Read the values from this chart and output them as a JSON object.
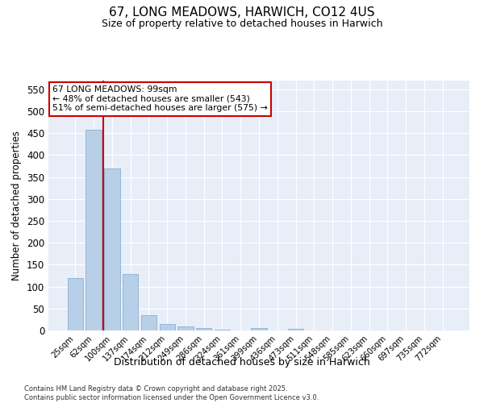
{
  "title1": "67, LONG MEADOWS, HARWICH, CO12 4US",
  "title2": "Size of property relative to detached houses in Harwich",
  "xlabel": "Distribution of detached houses by size in Harwich",
  "ylabel": "Number of detached properties",
  "categories": [
    "25sqm",
    "62sqm",
    "100sqm",
    "137sqm",
    "174sqm",
    "212sqm",
    "249sqm",
    "286sqm",
    "324sqm",
    "361sqm",
    "399sqm",
    "436sqm",
    "473sqm",
    "511sqm",
    "548sqm",
    "585sqm",
    "623sqm",
    "660sqm",
    "697sqm",
    "735sqm",
    "772sqm"
  ],
  "bar_heights": [
    120,
    457,
    370,
    128,
    35,
    14,
    9,
    6,
    2,
    0,
    5,
    0,
    4,
    0,
    0,
    0,
    0,
    0,
    0,
    0,
    0
  ],
  "bar_color": "#b8cfe8",
  "bar_edge_color": "#8ab0d0",
  "vline_color": "#cc0000",
  "vline_x_index": 2,
  "annotation_text": "67 LONG MEADOWS: 99sqm\n← 48% of detached houses are smaller (543)\n51% of semi-detached houses are larger (575) →",
  "annotation_box_edge_color": "#cc0000",
  "ylim": [
    0,
    570
  ],
  "yticks": [
    0,
    50,
    100,
    150,
    200,
    250,
    300,
    350,
    400,
    450,
    500,
    550
  ],
  "background_color": "#e8eef8",
  "footer1": "Contains HM Land Registry data © Crown copyright and database right 2025.",
  "footer2": "Contains public sector information licensed under the Open Government Licence v3.0."
}
